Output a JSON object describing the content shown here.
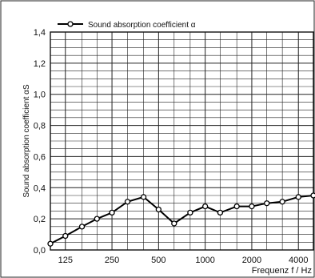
{
  "chart_data": {
    "type": "line",
    "title": "",
    "legend": {
      "label": "Sound absorption coefficient α",
      "placement": "top-left"
    },
    "ylabel": "Sound absorption coefficient αS",
    "xlabel": "Frequenz f / Hz",
    "x_scale": "log",
    "xlim": [
      100,
      5000
    ],
    "ylim": [
      0,
      1.4
    ],
    "y_ticks": [
      "0,0",
      "0,2",
      "0,4",
      "0,6",
      "0,8",
      "1,0",
      "1,2",
      "1,4"
    ],
    "x_tick_labels": [
      {
        "value": 125,
        "label": "125"
      },
      {
        "value": 250,
        "label": "250"
      },
      {
        "value": 500,
        "label": "500"
      },
      {
        "value": 1000,
        "label": "1000"
      },
      {
        "value": 2000,
        "label": "2000"
      },
      {
        "value": 4000,
        "label": "4000"
      }
    ],
    "grid": true,
    "series": [
      {
        "name": "Sound absorption coefficient α",
        "x": [
          100,
          125,
          160,
          200,
          250,
          315,
          400,
          500,
          630,
          800,
          1000,
          1250,
          1600,
          2000,
          2500,
          3150,
          4000,
          5000
        ],
        "y": [
          0.04,
          0.09,
          0.15,
          0.2,
          0.24,
          0.31,
          0.34,
          0.26,
          0.17,
          0.24,
          0.28,
          0.24,
          0.28,
          0.28,
          0.3,
          0.31,
          0.34,
          0.35
        ]
      }
    ]
  }
}
